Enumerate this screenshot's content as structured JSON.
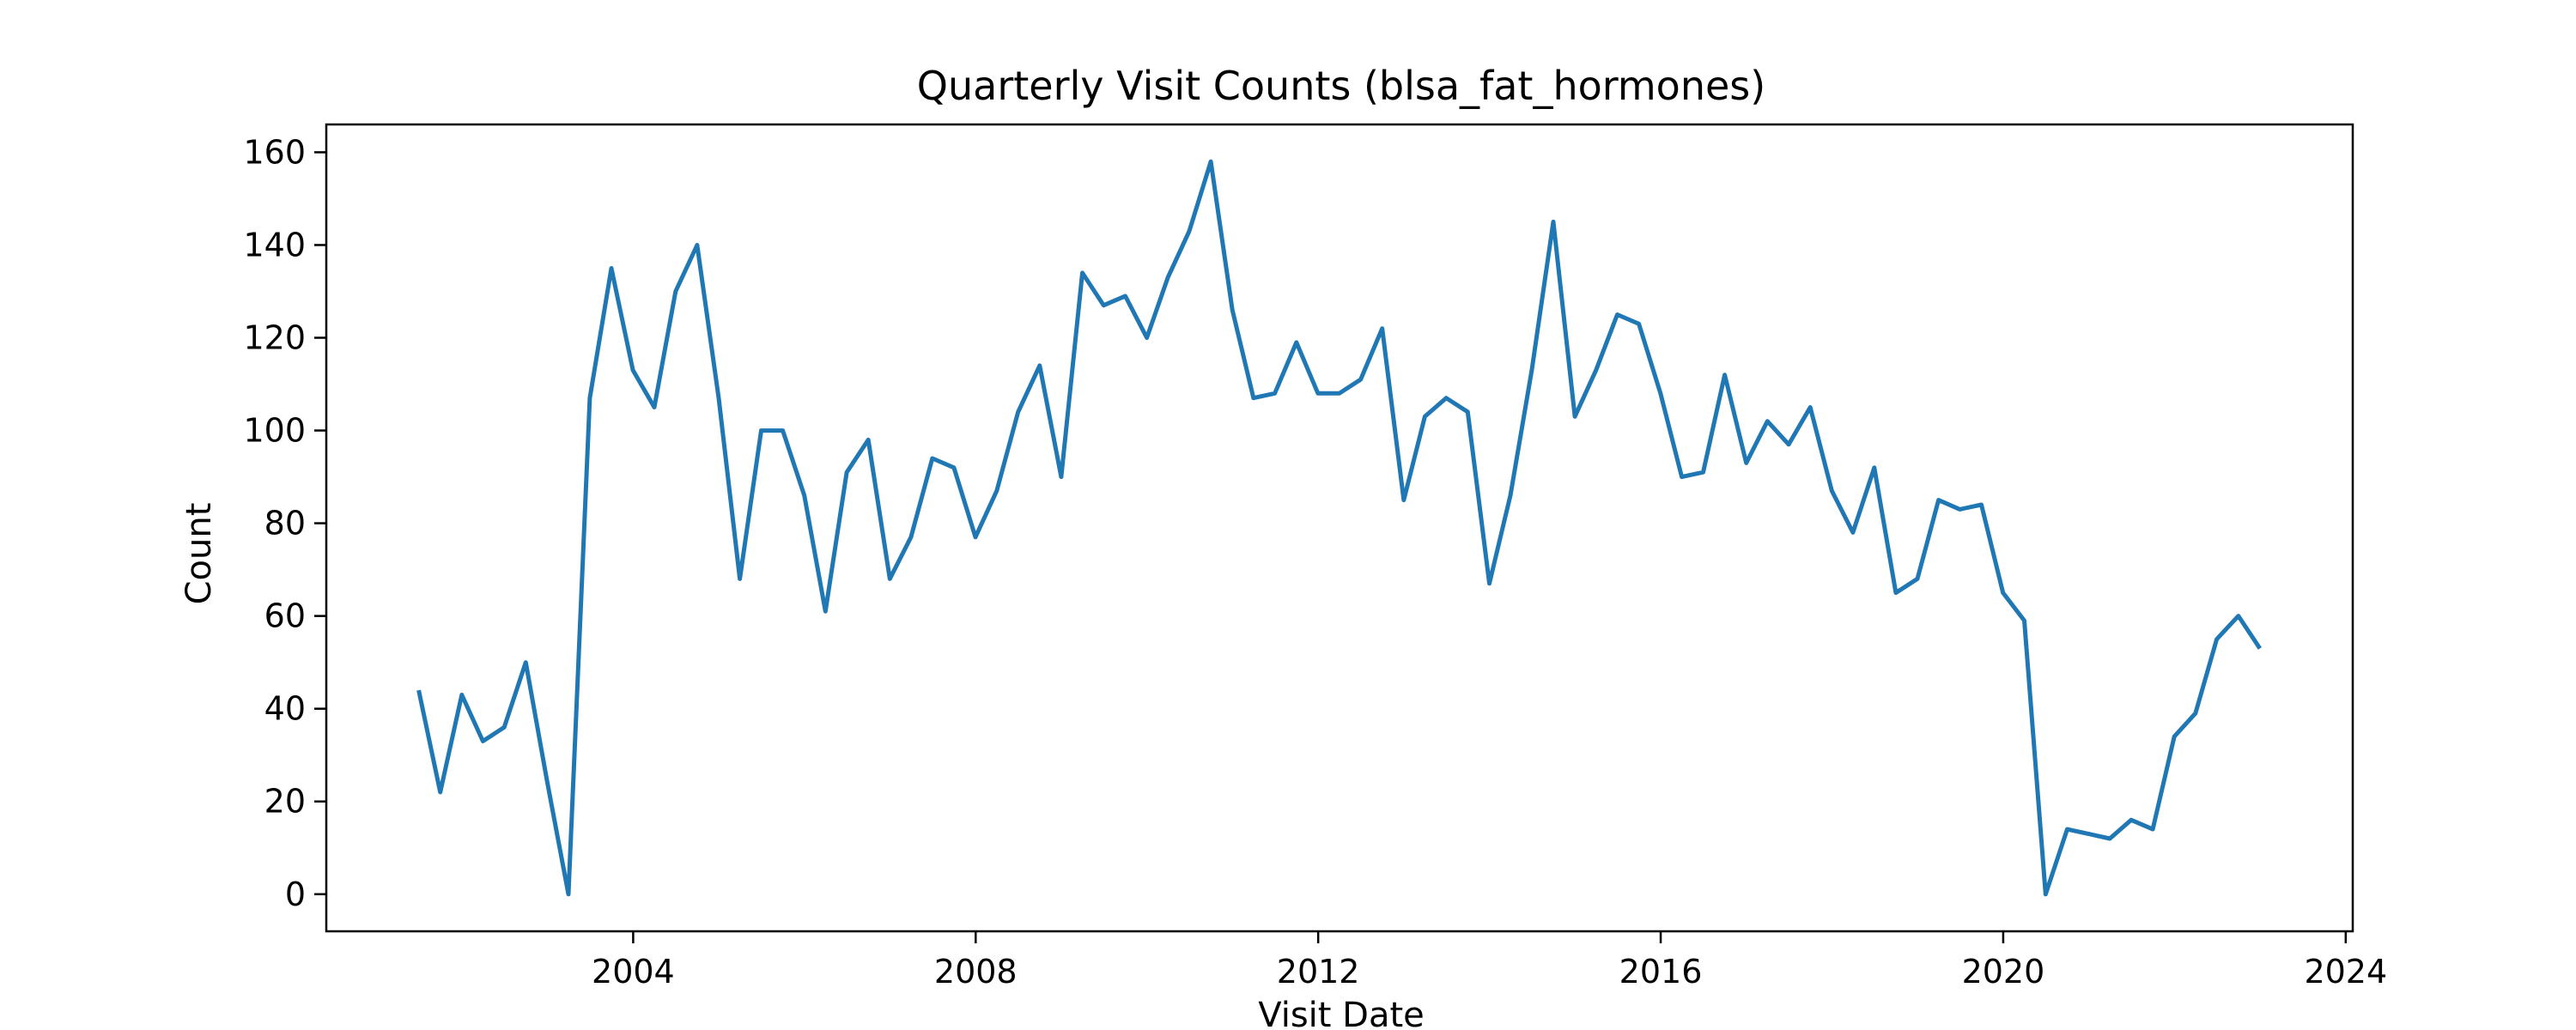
{
  "chart_data": {
    "type": "line",
    "title": "Quarterly Visit Counts (blsa_fat_hormones)",
    "xlabel": "Visit Date",
    "ylabel": "Count",
    "x_type": "date",
    "xlim": [
      "2000-06-01",
      "2024-01-31"
    ],
    "ylim": [
      -8,
      166
    ],
    "x_ticks": [
      "2004-01-01",
      "2008-01-01",
      "2012-01-01",
      "2016-01-01",
      "2020-01-01",
      "2024-01-01"
    ],
    "x_tick_labels": [
      "2004",
      "2008",
      "2012",
      "2016",
      "2020",
      "2024"
    ],
    "y_ticks": [
      0,
      20,
      40,
      60,
      80,
      100,
      120,
      140,
      160
    ],
    "y_tick_labels": [
      "0",
      "20",
      "40",
      "60",
      "80",
      "100",
      "120",
      "140",
      "160"
    ],
    "grid": false,
    "legend": "none",
    "color": "#1f77b4",
    "series": [
      {
        "x": [
          "2001-06-30",
          "2001-09-30",
          "2001-12-31",
          "2002-03-31",
          "2002-06-30",
          "2002-09-30",
          "2002-12-31",
          "2003-03-31",
          "2003-06-30",
          "2003-09-30",
          "2003-12-31",
          "2004-03-31",
          "2004-06-30",
          "2004-09-30",
          "2004-12-31",
          "2005-03-31",
          "2005-06-30",
          "2005-09-30",
          "2005-12-31",
          "2006-03-31",
          "2006-06-30",
          "2006-09-30",
          "2006-12-31",
          "2007-03-31",
          "2007-06-30",
          "2007-09-30",
          "2007-12-31",
          "2008-03-31",
          "2008-06-30",
          "2008-09-30",
          "2008-12-31",
          "2009-03-31",
          "2009-06-30",
          "2009-09-30",
          "2009-12-31",
          "2010-03-31",
          "2010-06-30",
          "2010-09-30",
          "2010-12-31",
          "2011-03-31",
          "2011-06-30",
          "2011-09-30",
          "2011-12-31",
          "2012-03-31",
          "2012-06-30",
          "2012-09-30",
          "2012-12-31",
          "2013-03-31",
          "2013-06-30",
          "2013-09-30",
          "2013-12-31",
          "2014-03-31",
          "2014-06-30",
          "2014-09-30",
          "2014-12-31",
          "2015-03-31",
          "2015-06-30",
          "2015-09-30",
          "2015-12-31",
          "2016-03-31",
          "2016-06-30",
          "2016-09-30",
          "2016-12-31",
          "2017-03-31",
          "2017-06-30",
          "2017-09-30",
          "2017-12-31",
          "2018-03-31",
          "2018-06-30",
          "2018-09-30",
          "2018-12-31",
          "2019-03-31",
          "2019-06-30",
          "2019-09-30",
          "2019-12-31",
          "2020-03-31",
          "2020-06-30",
          "2020-09-30",
          "2020-12-31",
          "2021-03-31",
          "2021-06-30",
          "2021-09-30",
          "2021-12-31",
          "2022-03-31",
          "2022-06-30",
          "2022-09-30",
          "2022-12-31"
        ],
        "y": [
          44,
          22,
          43,
          33,
          36,
          50,
          24,
          0,
          107,
          135,
          113,
          105,
          130,
          140,
          107,
          68,
          100,
          100,
          86,
          61,
          91,
          98,
          68,
          77,
          94,
          92,
          77,
          87,
          104,
          114,
          90,
          134,
          127,
          129,
          120,
          133,
          143,
          158,
          126,
          107,
          108,
          119,
          108,
          108,
          111,
          122,
          85,
          103,
          107,
          104,
          67,
          86,
          113,
          145,
          103,
          113,
          125,
          123,
          108,
          90,
          91,
          112,
          93,
          102,
          97,
          105,
          87,
          78,
          92,
          65,
          68,
          85,
          83,
          84,
          65,
          59,
          0,
          14,
          13,
          12,
          16,
          14,
          34,
          39,
          55,
          60,
          53
        ]
      }
    ]
  }
}
